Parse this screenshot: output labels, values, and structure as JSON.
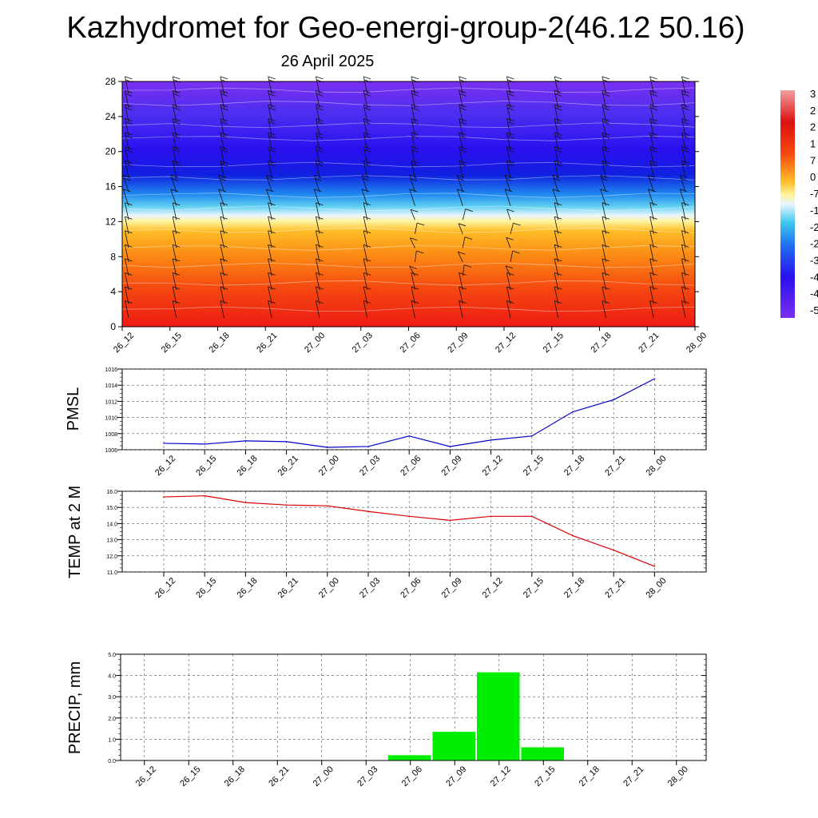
{
  "title": "Kazhydromet for Geo-energi-group-2(46.12 50.16)",
  "subtitle": "26 April 2025",
  "colors": {
    "pmsl_line": "#0000cc",
    "temp_line": "#dd0000",
    "precip_bar": "#00ee00",
    "grid": "#555555"
  },
  "chart_data": [
    {
      "type": "heatmap",
      "name": "altitude-time-section",
      "x_categories": [
        "26_12",
        "26_15",
        "26_18",
        "26_21",
        "27_00",
        "27_03",
        "27_06",
        "27_09",
        "27_12",
        "27_15",
        "27_18",
        "27_21",
        "28_00"
      ],
      "ylim": [
        0,
        28
      ],
      "yticks": [
        0,
        4,
        8,
        12,
        16,
        20,
        24,
        28
      ],
      "colorbar_labels": [
        "3",
        "2",
        "2",
        "1",
        "7",
        "0",
        "-7",
        "-1",
        "-2",
        "-2",
        "-3",
        "-4",
        "-4",
        "-5"
      ],
      "colorscale_note": "warm (red/orange) near 0-12, white/cyan transition near 12-14, blue/purple above 16",
      "wind_barbs": true
    },
    {
      "type": "line",
      "ylabel": "PMSL",
      "x": [
        "26_12",
        "26_15",
        "26_18",
        "26_21",
        "27_00",
        "27_03",
        "27_06",
        "27_09",
        "27_12",
        "27_15",
        "27_18",
        "27_21",
        "28_00"
      ],
      "series": [
        {
          "values": [
            1006.8,
            1006.7,
            1007.1,
            1007.0,
            1006.3,
            1006.4,
            1007.7,
            1006.4,
            1007.2,
            1007.7,
            1010.7,
            1012.2,
            1014.8
          ]
        }
      ],
      "ylim": [
        1006,
        1016
      ],
      "yticks": [
        "1006",
        "1008",
        "1010",
        "1012",
        "1014",
        "1016"
      ],
      "grid": true
    },
    {
      "type": "line",
      "ylabel": "TEMP at 2 M",
      "x": [
        "26_12",
        "26_15",
        "26_18",
        "26_21",
        "27_00",
        "27_03",
        "27_06",
        "27_09",
        "27_12",
        "27_15",
        "27_18",
        "27_21",
        "28_00"
      ],
      "series": [
        {
          "values": [
            15.65,
            15.72,
            15.3,
            15.15,
            15.1,
            14.75,
            14.45,
            14.2,
            14.45,
            14.45,
            13.25,
            12.35,
            11.35
          ]
        }
      ],
      "ylim": [
        11.0,
        16.0
      ],
      "yticks": [
        "11.0",
        "12.0",
        "13.0",
        "14.0",
        "15.0",
        "16.0"
      ],
      "grid": true
    },
    {
      "type": "bar",
      "ylabel": "PRECIP, mm",
      "categories": [
        "26_12",
        "26_15",
        "26_18",
        "26_21",
        "27_00",
        "27_03",
        "27_06",
        "27_09",
        "27_12",
        "27_15",
        "27_18",
        "27_21",
        "28_00"
      ],
      "values": [
        0,
        0,
        0,
        0,
        0,
        0,
        0.25,
        1.35,
        4.15,
        0.62,
        0.02,
        0,
        0
      ],
      "ylim": [
        0,
        5.0
      ],
      "yticks": [
        "0.0",
        "1.0",
        "2.0",
        "3.0",
        "4.0",
        "5.0"
      ],
      "grid": true
    }
  ]
}
